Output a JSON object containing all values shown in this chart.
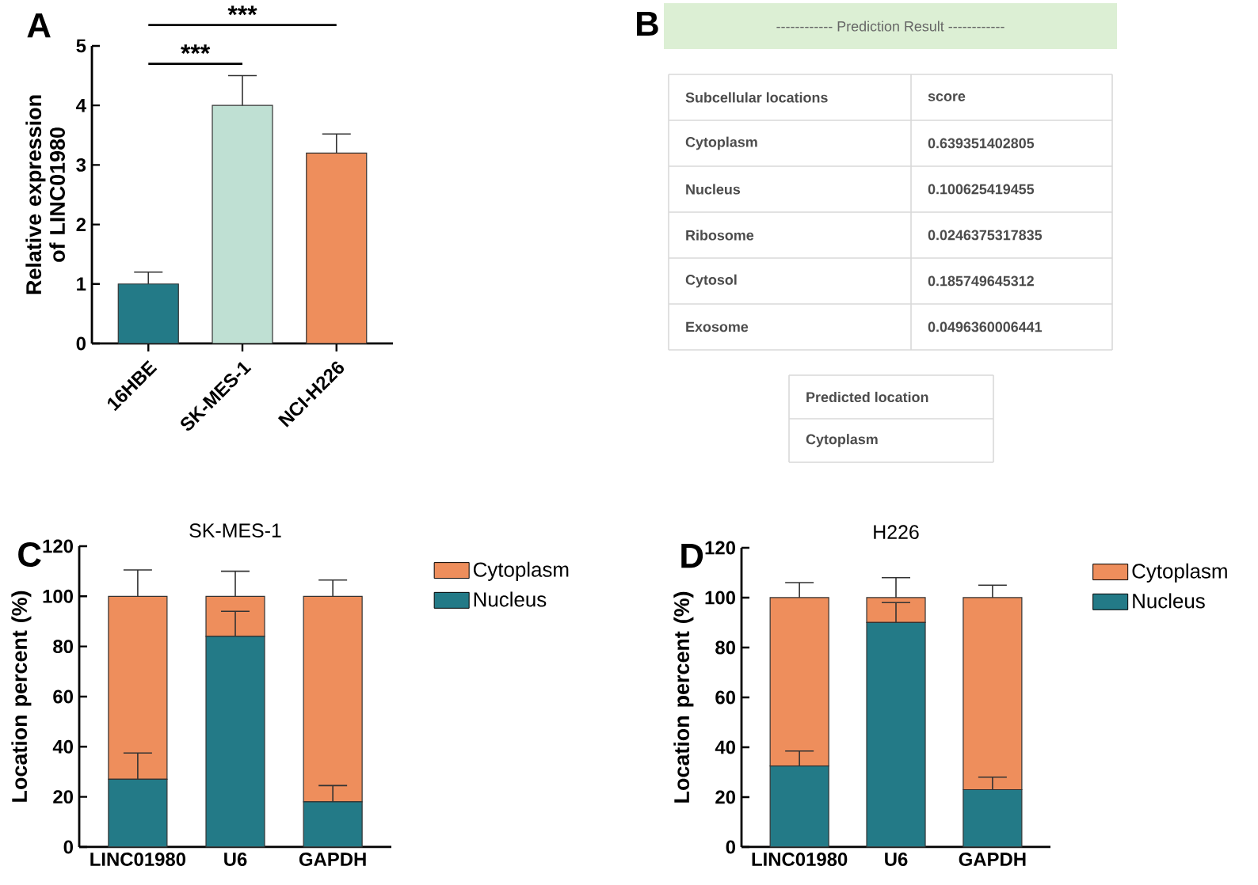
{
  "chart_data": [
    {
      "type": "bar",
      "ylabel": "Relative expression of LINC01980",
      "categories": [
        "16HBE",
        "SK-MES-1",
        "NCI-H226"
      ],
      "values": [
        1.0,
        4.0,
        3.2
      ],
      "errors": [
        0.2,
        0.5,
        0.32
      ],
      "colors": [
        "#237a87",
        "#bfe0d3",
        "#ee8e5c"
      ],
      "ylim": [
        0,
        5
      ],
      "yticks": [
        0,
        1,
        2,
        3,
        4,
        5
      ],
      "annotations": [
        "A",
        "***",
        "***"
      ]
    },
    {
      "type": "other",
      "title": "------------ Prediction Result ------------",
      "categories": [
        "Cytoplasm",
        "Nucleus",
        "Ribosome",
        "Cytosol",
        "Exosome"
      ],
      "values": [
        0.639351402805,
        0.100625419455,
        0.0246375317835,
        0.185749645312,
        0.0496360006441
      ],
      "data_labels": true,
      "annotations": [
        "B",
        "Subcellular locations",
        "score",
        "Predicted location",
        "Cytoplasm"
      ]
    },
    {
      "type": "bar",
      "title": "SK-MES-1",
      "ylabel": "Location percent (%)",
      "categories": [
        "LINC01980",
        "U6",
        "GAPDH"
      ],
      "stacked": true,
      "legend": "right",
      "ylim": [
        0,
        120
      ],
      "yticks": [
        0,
        20,
        40,
        60,
        80,
        100,
        120
      ],
      "annotations": [
        "C"
      ],
      "series": [
        {
          "name": "Nucleus",
          "color": "#237a87",
          "values": [
            27,
            84,
            18
          ],
          "errors": [
            [
              27,
              37.5
            ],
            [
              84,
              94
            ],
            [
              18,
              24.5
            ]
          ]
        },
        {
          "name": "Cytoplasm",
          "color": "#ee8e5c",
          "values": [
            73,
            16,
            82
          ],
          "errors": [
            [
              100,
              110.5
            ],
            [
              100,
              110
            ],
            [
              100,
              106.5
            ]
          ]
        }
      ]
    },
    {
      "type": "bar",
      "title": "H226",
      "ylabel": "Location percent (%)",
      "categories": [
        "LINC01980",
        "U6",
        "GAPDH"
      ],
      "stacked": true,
      "legend": "right",
      "ylim": [
        0,
        120
      ],
      "yticks": [
        0,
        20,
        40,
        60,
        80,
        100,
        120
      ],
      "annotations": [
        "D"
      ],
      "series": [
        {
          "name": "Nucleus",
          "color": "#237a87",
          "values": [
            32.5,
            90,
            23
          ],
          "errors": [
            [
              32.5,
              38.5
            ],
            [
              90,
              98
            ],
            [
              23,
              28
            ]
          ]
        },
        {
          "name": "Cytoplasm",
          "color": "#ee8e5c",
          "values": [
            67.5,
            10,
            77
          ],
          "errors": [
            [
              100,
              106
            ],
            [
              100,
              108
            ],
            [
              100,
              105
            ]
          ]
        }
      ]
    }
  ]
}
